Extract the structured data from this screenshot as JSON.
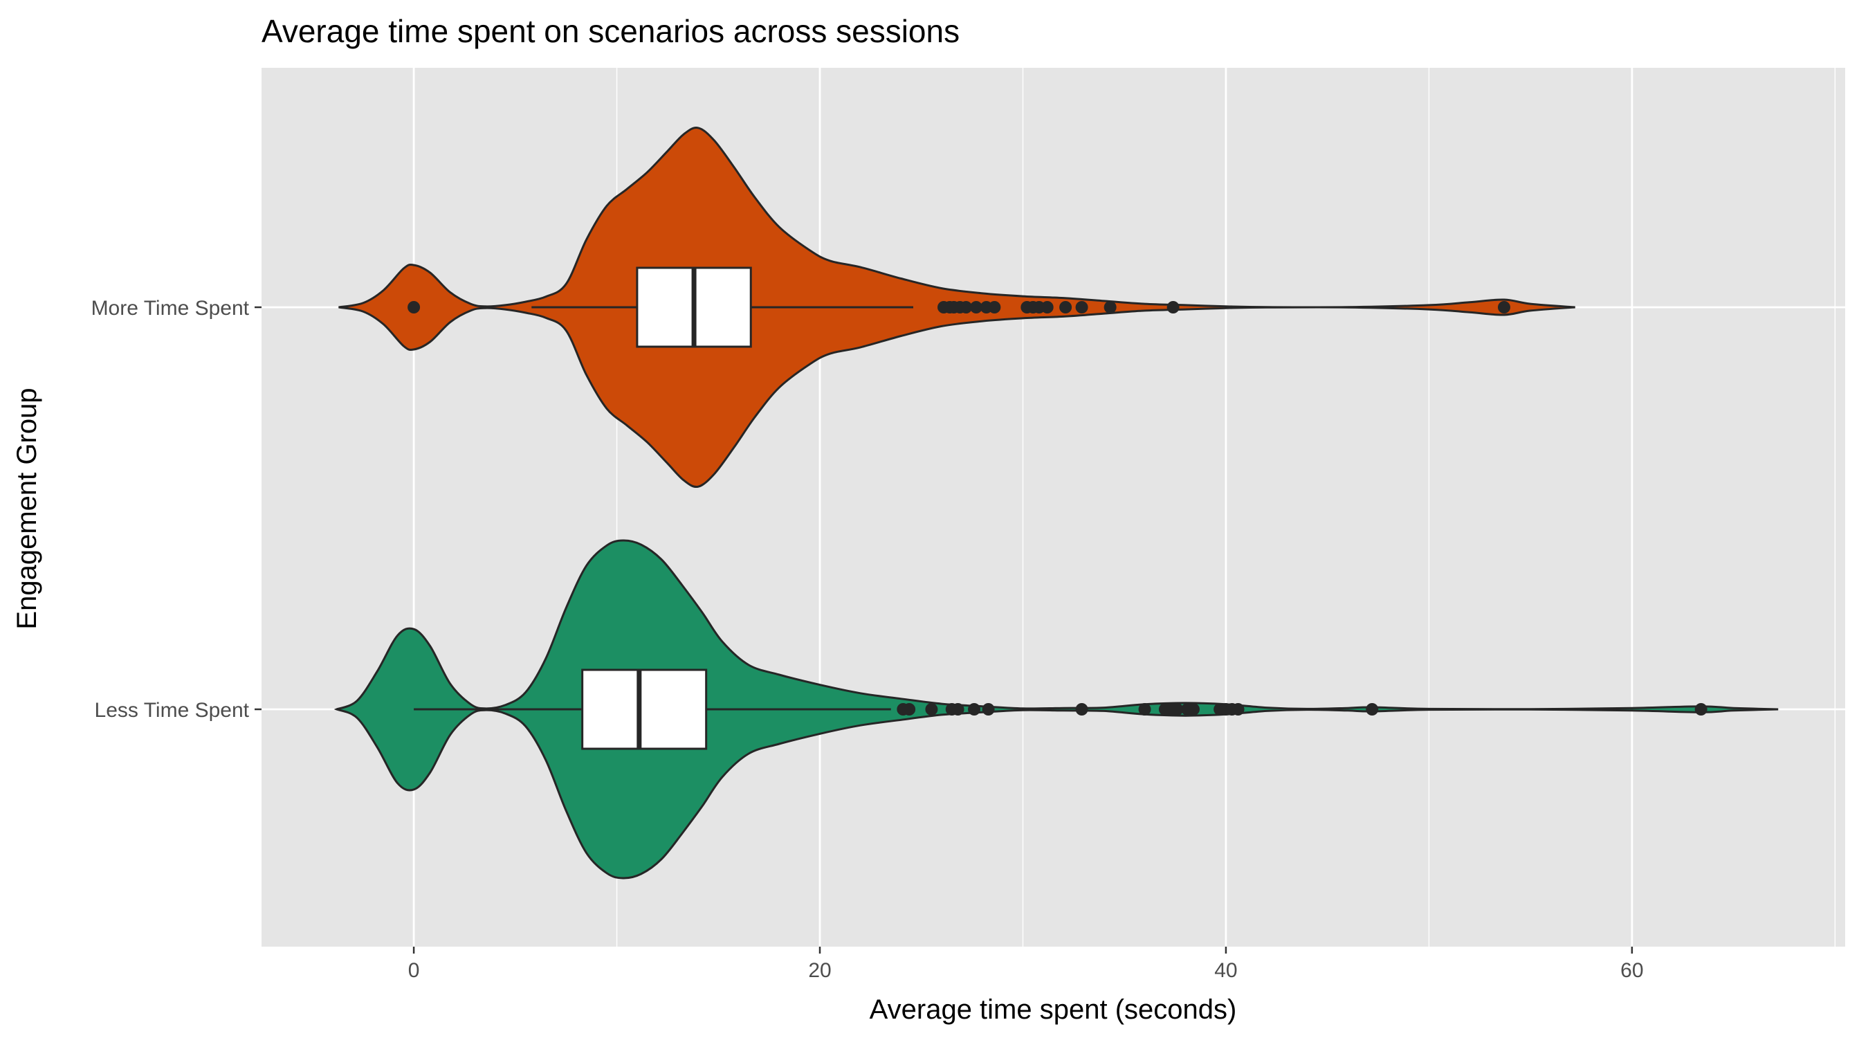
{
  "chart_data": {
    "type": "violin",
    "title": "Average time spent on scenarios across sessions",
    "xlabel": "Average time spent (seconds)",
    "ylabel": "Engagement Group",
    "orientation": "horizontal",
    "xlim": [
      -7.5,
      70.5
    ],
    "x_ticks": [
      0,
      20,
      40,
      60
    ],
    "x_tick_labels": [
      "0",
      "20",
      "40",
      "60"
    ],
    "x_minor_gridlines": [
      10,
      30,
      50,
      70
    ],
    "grid": true,
    "legend": "none",
    "categories": [
      "More Time Spent",
      "Less Time Spent"
    ],
    "series": [
      {
        "name": "More Time Spent",
        "fill": "#cc4a08",
        "violin_range": [
          -3.7,
          57.2
        ],
        "density_profile": [
          [
            -3.7,
            0.0
          ],
          [
            -2.5,
            0.1
          ],
          [
            -1.5,
            0.4
          ],
          [
            -0.5,
            0.92
          ],
          [
            0,
            1.0
          ],
          [
            0.8,
            0.82
          ],
          [
            1.8,
            0.35
          ],
          [
            2.8,
            0.08
          ],
          [
            3.5,
            0.02
          ],
          [
            4.5,
            0.05
          ],
          [
            5.5,
            0.13
          ],
          [
            6.5,
            0.25
          ],
          [
            7.5,
            0.55
          ],
          [
            8.5,
            1.6
          ],
          [
            9.5,
            2.4
          ],
          [
            10.5,
            2.8
          ],
          [
            11.5,
            3.2
          ],
          [
            12.5,
            3.7
          ],
          [
            13.3,
            4.1
          ],
          [
            14,
            4.25
          ],
          [
            14.8,
            3.95
          ],
          [
            15.8,
            3.3
          ],
          [
            16.8,
            2.6
          ],
          [
            18,
            1.9
          ],
          [
            19.5,
            1.35
          ],
          [
            20.5,
            1.1
          ],
          [
            22,
            0.95
          ],
          [
            24,
            0.68
          ],
          [
            26,
            0.45
          ],
          [
            28,
            0.33
          ],
          [
            30,
            0.26
          ],
          [
            32,
            0.22
          ],
          [
            34,
            0.15
          ],
          [
            36,
            0.08
          ],
          [
            38,
            0.05
          ],
          [
            40,
            0.02
          ],
          [
            42,
            0.005
          ],
          [
            46,
            0.004
          ],
          [
            50,
            0.05
          ],
          [
            52,
            0.12
          ],
          [
            53.7,
            0.18
          ],
          [
            55,
            0.08
          ],
          [
            57.2,
            0.0
          ]
        ],
        "box": {
          "whisker_low": 5.8,
          "q1": 11.0,
          "median": 13.8,
          "q3": 16.6,
          "whisker_high": 24.6
        },
        "outliers": [
          0.0,
          26.1,
          26.4,
          26.6,
          26.9,
          27.2,
          27.7,
          28.2,
          28.6,
          30.2,
          30.5,
          30.8,
          31.2,
          32.1,
          32.9,
          34.3,
          37.4,
          53.7
        ]
      },
      {
        "name": "Less Time Spent",
        "fill": "#1c8f63",
        "violin_range": [
          -3.8,
          67.2
        ],
        "density_profile": [
          [
            -3.8,
            0.0
          ],
          [
            -2.8,
            0.2
          ],
          [
            -1.8,
            0.9
          ],
          [
            -0.8,
            1.75
          ],
          [
            0,
            1.9
          ],
          [
            0.8,
            1.5
          ],
          [
            1.8,
            0.6
          ],
          [
            2.8,
            0.12
          ],
          [
            3.5,
            0.02
          ],
          [
            4.5,
            0.1
          ],
          [
            5.5,
            0.4
          ],
          [
            6.5,
            1.2
          ],
          [
            7.5,
            2.4
          ],
          [
            8.5,
            3.4
          ],
          [
            9.5,
            3.88
          ],
          [
            10.3,
            4.0
          ],
          [
            11.2,
            3.9
          ],
          [
            12.2,
            3.55
          ],
          [
            13.2,
            2.95
          ],
          [
            14.2,
            2.3
          ],
          [
            15.2,
            1.6
          ],
          [
            16.5,
            1.05
          ],
          [
            18,
            0.82
          ],
          [
            20,
            0.58
          ],
          [
            22,
            0.38
          ],
          [
            24,
            0.25
          ],
          [
            26,
            0.13
          ],
          [
            28,
            0.07
          ],
          [
            30,
            0.02
          ],
          [
            32,
            0.03
          ],
          [
            34,
            0.04
          ],
          [
            36,
            0.12
          ],
          [
            38,
            0.15
          ],
          [
            40,
            0.12
          ],
          [
            42,
            0.04
          ],
          [
            44,
            0.01
          ],
          [
            46,
            0.03
          ],
          [
            47.2,
            0.05
          ],
          [
            50,
            0.01
          ],
          [
            55,
            0.005
          ],
          [
            60,
            0.03
          ],
          [
            63.4,
            0.07
          ],
          [
            65,
            0.03
          ],
          [
            67.2,
            0.0
          ]
        ],
        "box": {
          "whisker_low": 0.0,
          "q1": 8.3,
          "median": 11.1,
          "q3": 14.4,
          "whisker_high": 23.5
        },
        "outliers": [
          24.1,
          24.4,
          25.5,
          26.5,
          26.8,
          27.6,
          28.3,
          32.9,
          36.0,
          37.0,
          37.3,
          37.6,
          38.1,
          38.4,
          39.7,
          40.0,
          40.3,
          40.6,
          47.2,
          63.4
        ]
      }
    ]
  }
}
